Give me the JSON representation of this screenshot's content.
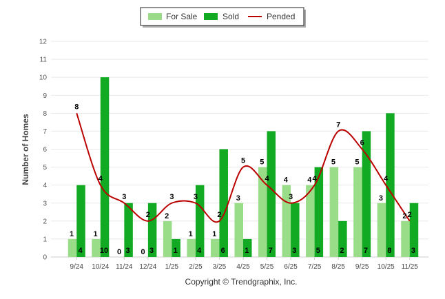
{
  "chart_data": {
    "type": "bar",
    "ylabel": "Number of Homes",
    "ylim": [
      0,
      12
    ],
    "yticks": [
      "0",
      "1",
      "2",
      "3",
      "4",
      "5",
      "6",
      "7",
      "8",
      "9",
      "10",
      "11",
      "12"
    ],
    "categories": [
      "9/24",
      "10/24",
      "11/24",
      "12/24",
      "1/25",
      "2/25",
      "3/25",
      "4/25",
      "5/25",
      "6/25",
      "7/25",
      "8/25",
      "9/25",
      "10/25",
      "11/25"
    ],
    "legend_position": "top-center",
    "grid": true,
    "series": [
      {
        "name": "For Sale",
        "kind": "bar",
        "color": "#99dd88",
        "values": [
          1,
          1,
          0,
          0,
          2,
          1,
          1,
          3,
          5,
          4,
          4,
          5,
          5,
          3,
          2
        ]
      },
      {
        "name": "Sold",
        "kind": "bar",
        "color": "#11aa22",
        "values": [
          4,
          10,
          3,
          3,
          1,
          4,
          6,
          1,
          7,
          3,
          5,
          2,
          7,
          8,
          3
        ]
      },
      {
        "name": "Pended",
        "kind": "line",
        "color": "#bb0000",
        "values": [
          8,
          4,
          3,
          2,
          3,
          3,
          2,
          5,
          4,
          3,
          4,
          7,
          6,
          4,
          2
        ]
      }
    ]
  },
  "footer": {
    "copyright": "Copyright © Trendgraphix, Inc."
  }
}
